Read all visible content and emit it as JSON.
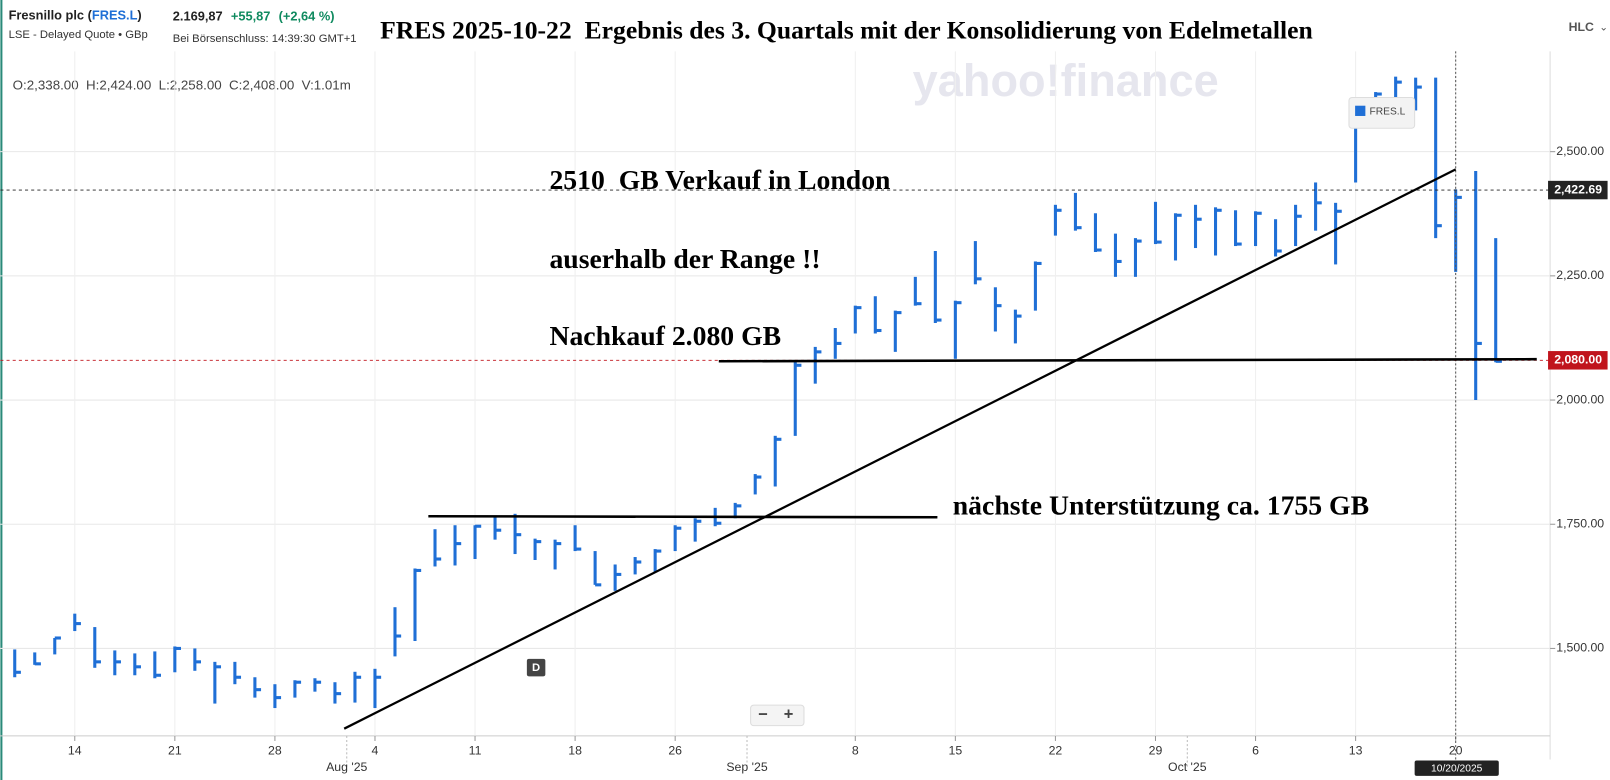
{
  "header": {
    "name": "Fresnillo plc (",
    "symbol": "FRES.L",
    "paren": ")",
    "exchange": "LSE - Delayed Quote • GBp",
    "price": "2.169,87",
    "change": "+55,87",
    "change_pct": "(+2,64 %)",
    "close_time": "Bei Börsenschluss: 14:39:30 GMT+1",
    "chart_kind": "HLC",
    "ohlc": "O:2,338.00  H:2,424.00  L:2,258.00  C:2,408.00  V:1.01m",
    "watermark": "yahoo!finance",
    "period_marker": "D",
    "crosshair_date": "10/20/2025"
  },
  "chart_data": {
    "type": "hlc",
    "title": "FRES 2025-10-22  Ergebnis des 3. Quartals mit der Konsolidierung von Edelmetallen",
    "annotations": [
      "2510  GB Verkauf in London",
      "auserhalb der Range !!",
      "Nachkauf 2.080 GB",
      "nächste Unterstützung ca. 1755 GB"
    ],
    "categories": [
      null,
      null,
      null,
      "14",
      null,
      null,
      null,
      null,
      "21",
      null,
      null,
      null,
      null,
      "28",
      null,
      null,
      null,
      null,
      "4",
      null,
      null,
      null,
      null,
      "11",
      null,
      null,
      null,
      null,
      "18",
      null,
      null,
      null,
      null,
      "26",
      null,
      null,
      null,
      null,
      null,
      null,
      null,
      null,
      "8",
      null,
      null,
      null,
      null,
      "15",
      null,
      null,
      null,
      null,
      "22",
      null,
      null,
      null,
      null,
      "29",
      null,
      null,
      null,
      null,
      "6",
      null,
      null,
      null,
      null,
      "13",
      null,
      null,
      null,
      null,
      "20",
      null,
      null
    ],
    "months": [
      null,
      null,
      null,
      null,
      null,
      null,
      null,
      null,
      null,
      null,
      null,
      null,
      null,
      null,
      null,
      null,
      null,
      "Aug '25",
      null,
      null,
      null,
      null,
      null,
      null,
      null,
      null,
      null,
      null,
      null,
      null,
      null,
      null,
      null,
      null,
      null,
      null,
      null,
      "Sep '25",
      null,
      null,
      null,
      null,
      null,
      null,
      null,
      null,
      null,
      null,
      null,
      null,
      null,
      null,
      null,
      null,
      null,
      null,
      null,
      null,
      null,
      "Oct '25",
      null,
      null,
      null,
      null,
      null,
      null,
      null,
      null,
      null,
      null,
      null,
      null,
      null,
      null,
      null
    ],
    "series": [
      {
        "name": "FRES.L",
        "color": "#1f6fd6",
        "high": [
          1498,
          1492,
          1521,
          1570,
          1543,
          1496,
          1490,
          1494,
          1504,
          1500,
          1473,
          1473,
          1442,
          1428,
          1436,
          1440,
          1432,
          1453,
          1459,
          1583,
          1661,
          1740,
          1748,
          1748,
          1767,
          1771,
          1721,
          1719,
          1748,
          1696,
          1669,
          1684,
          1700,
          1748,
          1762,
          1783,
          1793,
          1851,
          1928,
          2079,
          2107,
          2145,
          2190,
          2209,
          2180,
          2248,
          2300,
          2200,
          2320,
          2227,
          2182,
          2279,
          2393,
          2417,
          2376,
          2335,
          2326,
          2399,
          2376,
          2393,
          2388,
          2382,
          2380,
          2364,
          2393,
          2438,
          2397,
          2599,
          2620,
          2651,
          2649,
          2649,
          2424,
          2461,
          2326
        ],
        "low": [
          1442,
          1467,
          1488,
          1535,
          1461,
          1446,
          1446,
          1440,
          1452,
          1455,
          1389,
          1428,
          1401,
          1380,
          1401,
          1413,
          1389,
          1391,
          1380,
          1484,
          1515,
          1665,
          1667,
          1680,
          1719,
          1690,
          1678,
          1659,
          1696,
          1628,
          1616,
          1649,
          1653,
          1696,
          1715,
          1746,
          1762,
          1810,
          1826,
          1928,
          2033,
          2083,
          2134,
          2134,
          2097,
          2190,
          2155,
          2083,
          2233,
          2138,
          2114,
          2180,
          2331,
          2341,
          2298,
          2248,
          2248,
          2314,
          2281,
          2306,
          2291,
          2310,
          2310,
          2289,
          2310,
          2341,
          2273,
          2438,
          2579,
          2579,
          2583,
          2326,
          2258,
          2000,
          2076
        ],
        "close": [
          1452,
          1469,
          1521,
          1550,
          1473,
          1473,
          1463,
          1446,
          1500,
          1473,
          1463,
          1442,
          1417,
          1401,
          1432,
          1432,
          1409,
          1442,
          1442,
          1525,
          1657,
          1680,
          1711,
          1746,
          1738,
          1729,
          1715,
          1711,
          1700,
          1628,
          1649,
          1674,
          1696,
          1742,
          1756,
          1752,
          1787,
          1845,
          1921,
          2070,
          2097,
          2114,
          2186,
          2140,
          2176,
          2194,
          2161,
          2196,
          2244,
          2190,
          2169,
          2275,
          2382,
          2347,
          2302,
          2279,
          2320,
          2318,
          2372,
          2364,
          2382,
          2314,
          2376,
          2300,
          2370,
          2397,
          2380,
          2589,
          2616,
          2640,
          2630,
          2351,
          2408,
          2114,
          2078
        ]
      }
    ],
    "ylim": [
      1324,
      2702
    ],
    "yticks": [
      {
        "value": 1500,
        "label": "1,500.00"
      },
      {
        "value": 1750,
        "label": "1,750.00"
      },
      {
        "value": 2000,
        "label": "2,000.00"
      },
      {
        "value": 2250,
        "label": "2,250.00"
      },
      {
        "value": 2500,
        "label": "2,500.00"
      }
    ],
    "price_markers": [
      {
        "value": 2422.69,
        "label": "2,422.69",
        "color": "#222222"
      },
      {
        "value": 2080,
        "label": "2,080.00",
        "color": "#c0141c"
      }
    ],
    "grid": true
  }
}
